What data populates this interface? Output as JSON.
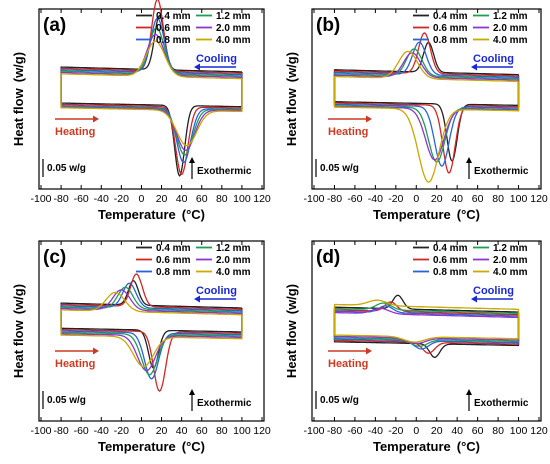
{
  "colors": {
    "0.4 mm": "#222222",
    "0.6 mm": "#d02828",
    "0.8 mm": "#2a63d8",
    "1.2 mm": "#1f9d55",
    "2.0 mm": "#8f35d0",
    "4.0 mm": "#c9a800",
    "cooling_arrow": "#1a28d4",
    "heating_arrow": "#cc3a22"
  },
  "chart_data": [
    {
      "type": "line",
      "panel_label": "(a)",
      "xlabel": "Temperature",
      "xunit": "(°C)",
      "ylabel": "Heat flow",
      "yunit": "(w/g)",
      "xlim": [
        -100,
        120
      ],
      "xticks": [
        "-100",
        "-80",
        "-60",
        "-40",
        "-20",
        "0",
        "20",
        "40",
        "60",
        "80",
        "100",
        "120"
      ],
      "legend": [
        "0.4 mm",
        "0.6 mm",
        "0.8 mm",
        "1.2 mm",
        "2.0 mm",
        "4.0 mm"
      ],
      "annotations": {
        "cooling": "Cooling",
        "heating": "Heating",
        "scale": "0.05 w/g",
        "exo": "Exothermic"
      },
      "series": [
        {
          "name": "0.4 mm",
          "cooling_base": 0.3,
          "cooling_peak_x": 18,
          "cooling_peak_h": 0.4,
          "heating_base": 0.07,
          "heating_peak_x": 38,
          "heating_peak_d": 0.52
        },
        {
          "name": "0.6 mm",
          "cooling_base": 0.29,
          "cooling_peak_x": 16,
          "cooling_peak_h": 0.53,
          "heating_base": 0.06,
          "heating_peak_x": 40,
          "heating_peak_d": 0.5
        },
        {
          "name": "0.8 mm",
          "cooling_base": 0.28,
          "cooling_peak_x": 16,
          "cooling_peak_h": 0.4,
          "heating_base": 0.05,
          "heating_peak_x": 42,
          "heating_peak_d": 0.4
        },
        {
          "name": "1.2 mm",
          "cooling_base": 0.27,
          "cooling_peak_x": 15,
          "cooling_peak_h": 0.34,
          "heating_base": 0.045,
          "heating_peak_x": 43,
          "heating_peak_d": 0.34
        },
        {
          "name": "2.0 mm",
          "cooling_base": 0.26,
          "cooling_peak_x": 14,
          "cooling_peak_h": 0.3,
          "heating_base": 0.04,
          "heating_peak_x": 44,
          "heating_peak_d": 0.3
        },
        {
          "name": "4.0 mm",
          "cooling_base": 0.25,
          "cooling_peak_x": 14,
          "cooling_peak_h": 0.26,
          "heating_base": 0.035,
          "heating_peak_x": 45,
          "heating_peak_d": 0.26
        }
      ]
    },
    {
      "type": "line",
      "panel_label": "(b)",
      "xlabel": "Temperature",
      "xunit": "(°C)",
      "ylabel": "Heat flow",
      "yunit": "(w/g)",
      "xlim": [
        -100,
        120
      ],
      "xticks": [
        "-100",
        "-80",
        "-60",
        "-40",
        "-20",
        "0",
        "20",
        "40",
        "60",
        "80",
        "100",
        "120"
      ],
      "legend": [
        "0.4 mm",
        "0.6 mm",
        "0.8 mm",
        "1.2 mm",
        "2.0 mm",
        "4.0 mm"
      ],
      "annotations": {
        "cooling": "Cooling",
        "heating": "Heating",
        "scale": "0.05 w/g",
        "exo": "Exothermic"
      },
      "series": [
        {
          "name": "0.4 mm",
          "cooling_base": 0.28,
          "cooling_peak_x": 12,
          "cooling_peak_h": 0.22,
          "heating_base": 0.08,
          "heating_peak_x": 35,
          "heating_peak_d": 0.42
        },
        {
          "name": "0.6 mm",
          "cooling_base": 0.27,
          "cooling_peak_x": 8,
          "cooling_peak_h": 0.3,
          "heating_base": 0.07,
          "heating_peak_x": 32,
          "heating_peak_d": 0.5
        },
        {
          "name": "0.8 mm",
          "cooling_base": 0.26,
          "cooling_peak_x": 3,
          "cooling_peak_h": 0.24,
          "heating_base": 0.06,
          "heating_peak_x": 25,
          "heating_peak_d": 0.44
        },
        {
          "name": "1.2 mm",
          "cooling_base": 0.25,
          "cooling_peak_x": -2,
          "cooling_peak_h": 0.2,
          "heating_base": 0.05,
          "heating_peak_x": 20,
          "heating_peak_d": 0.4
        },
        {
          "name": "2.0 mm",
          "cooling_base": 0.24,
          "cooling_peak_x": -4,
          "cooling_peak_h": 0.18,
          "heating_base": 0.045,
          "heating_peak_x": 18,
          "heating_peak_d": 0.38
        },
        {
          "name": "4.0 mm",
          "cooling_base": 0.23,
          "cooling_peak_x": -8,
          "cooling_peak_h": 0.2,
          "heating_base": 0.04,
          "heating_peak_x": 12,
          "heating_peak_d": 0.54
        }
      ]
    },
    {
      "type": "line",
      "panel_label": "(c)",
      "xlabel": "Temperature",
      "xunit": "(°C)",
      "ylabel": "Heat flow",
      "yunit": "(w/g)",
      "xlim": [
        -100,
        120
      ],
      "xticks": [
        "-100",
        "-80",
        "-60",
        "-40",
        "-20",
        "0",
        "20",
        "40",
        "60",
        "80",
        "100",
        "120"
      ],
      "legend": [
        "0.4 mm",
        "0.6 mm",
        "0.8 mm",
        "1.2 mm",
        "2.0 mm",
        "4.0 mm"
      ],
      "annotations": {
        "cooling": "Cooling",
        "heating": "Heating",
        "scale": "0.05 w/g",
        "exo": "Exothermic"
      },
      "series": [
        {
          "name": "0.4 mm",
          "cooling_base": 0.27,
          "cooling_peak_x": -8,
          "cooling_peak_h": 0.18,
          "heating_base": 0.12,
          "heating_peak_x": 12,
          "heating_peak_d": 0.28
        },
        {
          "name": "0.6 mm",
          "cooling_base": 0.26,
          "cooling_peak_x": -5,
          "cooling_peak_h": 0.24,
          "heating_base": 0.11,
          "heating_peak_x": 18,
          "heating_peak_d": 0.44
        },
        {
          "name": "0.8 mm",
          "cooling_base": 0.25,
          "cooling_peak_x": -12,
          "cooling_peak_h": 0.18,
          "heating_base": 0.1,
          "heating_peak_x": 10,
          "heating_peak_d": 0.34
        },
        {
          "name": "1.2 mm",
          "cooling_base": 0.24,
          "cooling_peak_x": -16,
          "cooling_peak_h": 0.16,
          "heating_base": 0.09,
          "heating_peak_x": 8,
          "heating_peak_d": 0.3
        },
        {
          "name": "2.0 mm",
          "cooling_base": 0.23,
          "cooling_peak_x": -20,
          "cooling_peak_h": 0.15,
          "heating_base": 0.08,
          "heating_peak_x": 5,
          "heating_peak_d": 0.26
        },
        {
          "name": "4.0 mm",
          "cooling_base": 0.22,
          "cooling_peak_x": -26,
          "cooling_peak_h": 0.14,
          "heating_base": 0.07,
          "heating_peak_x": 2,
          "heating_peak_d": 0.22
        }
      ]
    },
    {
      "type": "line",
      "panel_label": "(d)",
      "xlabel": "Temperature",
      "xunit": "(°C)",
      "ylabel": "Heat flow",
      "yunit": "(w/g)",
      "xlim": [
        -100,
        120
      ],
      "xticks": [
        "-100",
        "-80",
        "-60",
        "-40",
        "-20",
        "0",
        "20",
        "40",
        "60",
        "80",
        "100",
        "120"
      ],
      "legend": [
        "0.4 mm",
        "0.6 mm",
        "0.8 mm",
        "1.2 mm",
        "2.0 mm",
        "4.0 mm"
      ],
      "annotations": {
        "cooling": "Cooling",
        "heating": "Heating",
        "scale": "0.05 w/g",
        "exo": "Exothermic"
      },
      "series": [
        {
          "name": "0.4 mm",
          "cooling_base": 0.24,
          "cooling_peak_x": -18,
          "cooling_peak_h": 0.1,
          "heating_base": 0.02,
          "heating_peak_x": 18,
          "heating_peak_d": 0.1
        },
        {
          "name": "0.6 mm",
          "cooling_base": 0.22,
          "cooling_peak_x": -25,
          "cooling_peak_h": 0.07,
          "heating_base": 0.03,
          "heating_peak_x": 12,
          "heating_peak_d": 0.08
        },
        {
          "name": "0.8 mm",
          "cooling_base": 0.21,
          "cooling_peak_x": -30,
          "cooling_peak_h": 0.05,
          "heating_base": 0.04,
          "heating_peak_x": 5,
          "heating_peak_d": 0.06
        },
        {
          "name": "1.2 mm",
          "cooling_base": 0.23,
          "cooling_peak_x": -32,
          "cooling_peak_h": 0.05,
          "heating_base": 0.05,
          "heating_peak_x": 3,
          "heating_peak_d": 0.05
        },
        {
          "name": "2.0 mm",
          "cooling_base": 0.2,
          "cooling_peak_x": -35,
          "cooling_peak_h": 0.04,
          "heating_base": 0.06,
          "heating_peak_x": 0,
          "heating_peak_d": 0.04
        },
        {
          "name": "4.0 mm",
          "cooling_base": 0.26,
          "cooling_peak_x": -38,
          "cooling_peak_h": 0.04,
          "heating_base": 0.07,
          "heating_peak_x": -2,
          "heating_peak_d": 0.04
        }
      ]
    }
  ]
}
